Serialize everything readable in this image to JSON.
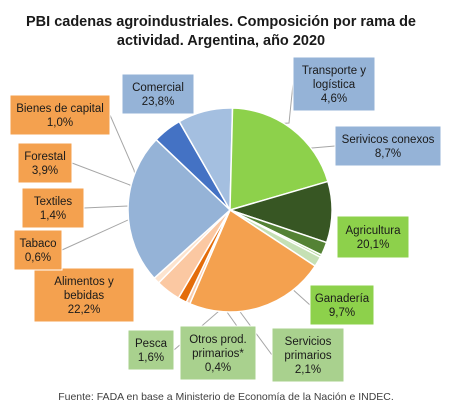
{
  "chart_data": {
    "type": "pie",
    "title": "PBI cadenas agroindustriales. Composición por rama de actividad. Argentina, año 2020",
    "title_lines": [
      "PBI cadenas agroindustriales. Composición por rama de",
      "actividad. Argentina, año 2020"
    ],
    "source": "Fuente: FADA en base a Ministerio de Economía de la Nación e INDEC.",
    "slices": [
      {
        "name": "Transporte y logística",
        "name_lines": [
          "Transporte y",
          "logística"
        ],
        "value": 4.6,
        "label": "4,6%",
        "color": "#4472c4"
      },
      {
        "name": "Serivicos conexos",
        "name_lines": [
          "Serivicos conexos"
        ],
        "value": 8.7,
        "label": "8,7%",
        "color": "#a4bfe0"
      },
      {
        "name": "Agricultura",
        "name_lines": [
          "Agricultura"
        ],
        "value": 20.1,
        "label": "20,1%",
        "color": "#8dd14b"
      },
      {
        "name": "Ganadería",
        "name_lines": [
          "Ganadería"
        ],
        "value": 9.7,
        "label": "9,7%",
        "color": "#375623"
      },
      {
        "name": "Servicios primarios",
        "name_lines": [
          "Servicios",
          "primarios"
        ],
        "value": 2.1,
        "label": "2,1%",
        "color": "#548235"
      },
      {
        "name": "Otros prod. primarios*",
        "name_lines": [
          "Otros prod.",
          "primarios*"
        ],
        "value": 0.4,
        "label": "0,4%",
        "color": "#a9d18e"
      },
      {
        "name": "Pesca",
        "name_lines": [
          "Pesca"
        ],
        "value": 1.6,
        "label": "1,6%",
        "color": "#c5e0b4"
      },
      {
        "name": "Alimentos y bebidas",
        "name_lines": [
          "Alimentos y",
          "bebidas"
        ],
        "value": 22.2,
        "label": "22,2%",
        "color": "#f4a14f"
      },
      {
        "name": "Tabaco",
        "name_lines": [
          "Tabaco"
        ],
        "value": 0.6,
        "label": "0,6%",
        "color": "#f8cbad"
      },
      {
        "name": "Textiles",
        "name_lines": [
          "Textiles"
        ],
        "value": 1.4,
        "label": "1,4%",
        "color": "#e46c0a"
      },
      {
        "name": "Forestal",
        "name_lines": [
          "Forestal"
        ],
        "value": 3.9,
        "label": "3,9%",
        "color": "#fbc8a2"
      },
      {
        "name": "Bienes de capital",
        "name_lines": [
          "Bienes de capital"
        ],
        "value": 1.0,
        "label": "1,0%",
        "color": "#fde4cf"
      },
      {
        "name": "Comercial",
        "name_lines": [
          "Comercial"
        ],
        "value": 23.8,
        "label": "23,8%",
        "color": "#95b3d7"
      }
    ]
  }
}
